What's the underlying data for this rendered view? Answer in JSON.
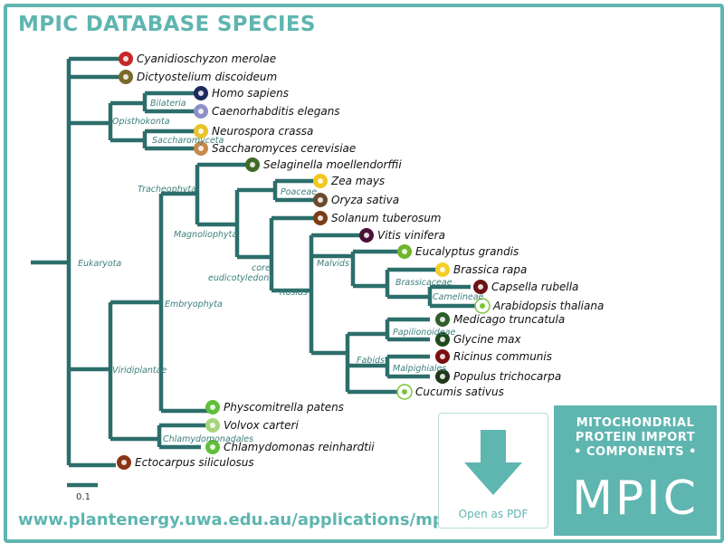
{
  "title": "MPIC DATABASE SPECIES",
  "url": "www.plantenergy.uwa.edu.au/applications/mpic",
  "pdf_button": {
    "label": "Open as PDF",
    "icon": "download-arrow-icon"
  },
  "panel": {
    "line1": "MITOCHONDRIAL",
    "line2": "PROTEIN IMPORT",
    "line3": "• COMPONENTS •",
    "logo_text": "MPIC"
  },
  "colors": {
    "teal": "#5fb5b0",
    "branch": "#2c6e6b",
    "white": "#ffffff"
  },
  "scale_bar": {
    "label": "0.1"
  },
  "clades": [
    {
      "id": "eukaryota",
      "label": "Eukaryota"
    },
    {
      "id": "opisthokonta",
      "label": "Opisthokonta"
    },
    {
      "id": "bilateria",
      "label": "Bilateria"
    },
    {
      "id": "saccharomyceta",
      "label": "Saccharomyceta"
    },
    {
      "id": "viridiplantae",
      "label": "Viridiplantae"
    },
    {
      "id": "embryophyta",
      "label": "Embryophyta"
    },
    {
      "id": "tracheophyta",
      "label": "Tracheophyta"
    },
    {
      "id": "magnoliophyta",
      "label": "Magnoliophyta"
    },
    {
      "id": "poaceae",
      "label": "Poaceae"
    },
    {
      "id": "core-eudicotyledons-1",
      "label": "core"
    },
    {
      "id": "core-eudicotyledons-2",
      "label": "eudicotyledons"
    },
    {
      "id": "rosids",
      "label": "Rosids"
    },
    {
      "id": "malvids",
      "label": "Malvids"
    },
    {
      "id": "brassicaceae",
      "label": "Brassicaceae"
    },
    {
      "id": "camelineae",
      "label": "Camelineae"
    },
    {
      "id": "fabids",
      "label": "Fabids"
    },
    {
      "id": "papilionoideae",
      "label": "Papilionoideae"
    },
    {
      "id": "malpighiales",
      "label": "Malpighiales"
    },
    {
      "id": "chlamydomonadales",
      "label": "Chlamydomonadales"
    }
  ],
  "species": [
    {
      "name": "Cyanidioschyzon merolae",
      "icon": "red-alga-icon",
      "color": "#c62828",
      "ring": false
    },
    {
      "name": "Dictyostelium discoideum",
      "icon": "slime-mold-icon",
      "color": "#7a6a2a",
      "ring": false
    },
    {
      "name": "Homo sapiens",
      "icon": "human-icon",
      "color": "#1d2a5c",
      "ring": false
    },
    {
      "name": "Caenorhabditis elegans",
      "icon": "worm-icon",
      "color": "#8f8fc8",
      "ring": false
    },
    {
      "name": "Neurospora crassa",
      "icon": "fungus-icon",
      "color": "#e8c32c",
      "ring": false
    },
    {
      "name": "Saccharomyces cerevisiae",
      "icon": "yeast-icon",
      "color": "#c88a4c",
      "ring": false
    },
    {
      "name": "Selaginella moellendorffii",
      "icon": "spikemoss-icon",
      "color": "#3f6b26",
      "ring": false
    },
    {
      "name": "Zea mays",
      "icon": "corn-icon",
      "color": "#f2c81f",
      "ring": false
    },
    {
      "name": "Oryza sativa",
      "icon": "rice-icon",
      "color": "#6a4a2c",
      "ring": false
    },
    {
      "name": "Solanum tuberosum",
      "icon": "potato-icon",
      "color": "#7a3d14",
      "ring": false
    },
    {
      "name": "Vitis vinifera",
      "icon": "grape-icon",
      "color": "#4a1238",
      "ring": false
    },
    {
      "name": "Eucalyptus grandis",
      "icon": "eucalyptus-leaf-icon",
      "color": "#6fb52b",
      "ring": false
    },
    {
      "name": "Brassica rapa",
      "icon": "brassica-flower-icon",
      "color": "#f5cf27",
      "ring": false
    },
    {
      "name": "Capsella rubella",
      "icon": "capsella-icon",
      "color": "#6b1212",
      "ring": false
    },
    {
      "name": "Arabidopsis thaliana",
      "icon": "arabidopsis-icon",
      "color": "#7cc33a",
      "ring": true
    },
    {
      "name": "Medicago truncatula",
      "icon": "medicago-icon",
      "color": "#2f5e2a",
      "ring": false
    },
    {
      "name": "Glycine max",
      "icon": "soybean-icon",
      "color": "#1f4a1f",
      "ring": false
    },
    {
      "name": "Ricinus communis",
      "icon": "castor-leaf-icon",
      "color": "#7a1010",
      "ring": false
    },
    {
      "name": "Populus trichocarpa",
      "icon": "poplar-leaf-icon",
      "color": "#1f3a1a",
      "ring": false
    },
    {
      "name": "Cucumis sativus",
      "icon": "cucumber-icon",
      "color": "#7cc33a",
      "ring": true
    },
    {
      "name": "Physcomitrella patens",
      "icon": "moss-icon",
      "color": "#5fbf3a",
      "ring": false
    },
    {
      "name": "Volvox carteri",
      "icon": "volvox-icon",
      "color": "#a6d67a",
      "ring": false
    },
    {
      "name": "Chlamydomonas reinhardtii",
      "icon": "chlamydomonas-icon",
      "color": "#5fbf3a",
      "ring": false
    },
    {
      "name": "Ectocarpus siliculosus",
      "icon": "brown-alga-icon",
      "color": "#8a3414",
      "ring": false
    }
  ]
}
